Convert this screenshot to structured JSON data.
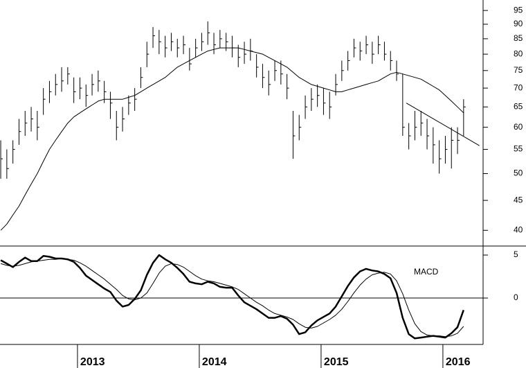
{
  "chart_data": [
    {
      "type": "ohlc",
      "x": [
        2012.37,
        2012.42,
        2012.47,
        2012.52,
        2012.57,
        2012.62,
        2012.67,
        2012.72,
        2012.77,
        2012.82,
        2012.87,
        2012.92,
        2012.97,
        2013.02,
        2013.07,
        2013.12,
        2013.17,
        2013.22,
        2013.27,
        2013.32,
        2013.37,
        2013.42,
        2013.47,
        2013.52,
        2013.57,
        2013.62,
        2013.67,
        2013.72,
        2013.77,
        2013.82,
        2013.87,
        2013.92,
        2013.97,
        2014.02,
        2014.07,
        2014.12,
        2014.17,
        2014.22,
        2014.27,
        2014.32,
        2014.37,
        2014.42,
        2014.47,
        2014.52,
        2014.57,
        2014.62,
        2014.67,
        2014.72,
        2014.77,
        2014.82,
        2014.87,
        2014.92,
        2014.97,
        2015.02,
        2015.07,
        2015.12,
        2015.17,
        2015.22,
        2015.27,
        2015.32,
        2015.37,
        2015.42,
        2015.47,
        2015.52,
        2015.57,
        2015.62,
        2015.67,
        2015.72,
        2015.77,
        2015.82,
        2015.87,
        2015.92,
        2015.97,
        2016.02,
        2016.07,
        2016.12,
        2016.17
      ],
      "high": [
        57,
        55,
        57,
        62,
        64,
        65,
        64,
        70,
        72,
        74,
        76,
        76,
        73,
        73,
        71,
        74,
        75,
        72,
        69,
        64,
        65,
        68,
        70,
        76,
        84,
        89,
        88,
        86,
        87,
        85,
        86,
        82,
        85,
        87,
        91,
        87,
        88,
        87,
        86,
        83,
        84,
        85,
        80,
        77,
        75,
        78,
        78,
        74,
        64,
        63,
        68,
        70,
        71,
        70,
        69,
        74,
        78,
        81,
        85,
        84,
        86,
        84,
        86,
        84,
        81,
        78,
        74,
        61,
        64,
        64,
        62,
        60,
        57,
        58,
        60,
        60,
        67
      ],
      "low": [
        49,
        49,
        52,
        56,
        58,
        59,
        57,
        63,
        66,
        68,
        69,
        71,
        66,
        67,
        65,
        68,
        69,
        66,
        62,
        57,
        59,
        63,
        64,
        70,
        76,
        82,
        80,
        79,
        81,
        79,
        80,
        75,
        79,
        81,
        83,
        80,
        82,
        81,
        79,
        76,
        77,
        78,
        73,
        70,
        68,
        72,
        71,
        67,
        53,
        57,
        62,
        64,
        65,
        63,
        62,
        68,
        72,
        75,
        79,
        78,
        80,
        77,
        80,
        78,
        75,
        72,
        58,
        55,
        57,
        58,
        55,
        52,
        50,
        52,
        51,
        54,
        58
      ],
      "close": [
        53,
        51,
        55,
        59,
        61,
        62,
        60,
        67,
        69,
        71,
        72,
        74,
        69,
        70,
        68,
        71,
        72,
        69,
        66,
        60,
        62,
        66,
        67,
        73,
        80,
        86,
        84,
        82,
        84,
        82,
        83,
        77,
        82,
        84,
        87,
        83,
        85,
        84,
        82,
        79,
        80,
        81,
        76,
        73,
        71,
        75,
        74,
        70,
        58,
        60,
        65,
        67,
        68,
        66,
        65,
        71,
        75,
        78,
        82,
        81,
        83,
        80,
        83,
        80,
        78,
        74,
        60,
        58,
        60,
        61,
        58,
        56,
        53,
        55,
        57,
        57,
        65
      ],
      "color": "#000000",
      "moving_average": {
        "color": "#000000",
        "values": [
          40,
          41,
          42.5,
          44,
          46,
          48,
          50,
          52.5,
          55,
          57,
          59,
          61,
          62.5,
          63.5,
          64.5,
          65.5,
          66.5,
          67,
          67,
          67,
          67,
          67.5,
          68,
          69,
          70,
          71,
          72,
          73,
          74.5,
          76,
          77,
          78,
          79,
          80,
          81,
          81.5,
          82,
          82,
          82,
          82,
          81.5,
          81,
          80.5,
          80,
          79,
          78,
          77,
          76,
          74.5,
          73,
          72,
          71,
          70.5,
          70,
          69.5,
          69,
          69,
          69.5,
          70,
          70.5,
          71,
          71.5,
          72,
          73,
          74,
          74.5,
          74,
          73.5,
          73,
          72.5,
          71.5,
          70.5,
          69.5,
          68,
          66.5,
          65,
          63.5
        ]
      },
      "trendline": {
        "color": "#000000",
        "x": [
          2015.7,
          2016.3
        ],
        "values": [
          66,
          55.8
        ]
      },
      "log_scale": true,
      "xlim": [
        2012.364,
        2016.33
      ],
      "ylim": [
        37.6,
        99
      ],
      "yticks": [
        40,
        45,
        50,
        55,
        60,
        65,
        70,
        75,
        80,
        85,
        90,
        95
      ]
    },
    {
      "type": "line",
      "annotation": "MACD",
      "x": [
        2012.37,
        2012.42,
        2012.47,
        2012.52,
        2012.57,
        2012.62,
        2012.67,
        2012.72,
        2012.77,
        2012.82,
        2012.87,
        2012.92,
        2012.97,
        2013.02,
        2013.07,
        2013.12,
        2013.17,
        2013.22,
        2013.27,
        2013.32,
        2013.37,
        2013.42,
        2013.47,
        2013.52,
        2013.57,
        2013.62,
        2013.67,
        2013.72,
        2013.77,
        2013.82,
        2013.87,
        2013.92,
        2013.97,
        2014.02,
        2014.07,
        2014.12,
        2014.17,
        2014.22,
        2014.27,
        2014.32,
        2014.37,
        2014.42,
        2014.47,
        2014.52,
        2014.57,
        2014.62,
        2014.67,
        2014.72,
        2014.77,
        2014.82,
        2014.87,
        2014.92,
        2014.97,
        2015.02,
        2015.07,
        2015.12,
        2015.17,
        2015.22,
        2015.27,
        2015.32,
        2015.37,
        2015.42,
        2015.47,
        2015.52,
        2015.57,
        2015.62,
        2015.67,
        2015.72,
        2015.77,
        2015.82,
        2015.87,
        2015.92,
        2015.97,
        2016.02,
        2016.07,
        2016.12,
        2016.17
      ],
      "series": [
        {
          "color": "#000000",
          "width": 2.5,
          "values": [
            4.4,
            4.0,
            3.6,
            4.2,
            4.7,
            4.3,
            4.3,
            4.9,
            4.8,
            4.6,
            4.6,
            4.5,
            4.2,
            3.5,
            2.6,
            2.1,
            1.6,
            1.1,
            0.7,
            -0.3,
            -1.0,
            -0.8,
            -0.1,
            0.9,
            2.7,
            4.1,
            5.0,
            4.5,
            4.1,
            3.5,
            2.8,
            1.9,
            1.7,
            1.6,
            1.9,
            1.7,
            1.3,
            1.2,
            1.2,
            0.3,
            -0.5,
            -0.9,
            -1.3,
            -1.8,
            -2.3,
            -2.3,
            -2.1,
            -2.4,
            -3.1,
            -4.2,
            -4.0,
            -3.2,
            -2.6,
            -2.2,
            -1.8,
            -1.0,
            0.2,
            1.4,
            2.4,
            3.1,
            3.4,
            3.2,
            3.1,
            2.8,
            2.3,
            0.6,
            -2.3,
            -4.2,
            -4.7,
            -4.6,
            -4.5,
            -4.4,
            -4.5,
            -4.6,
            -4.1,
            -3.4,
            -1.4
          ]
        },
        {
          "color": "#000000",
          "width": 1,
          "values": [
            4.0,
            3.8,
            3.7,
            3.8,
            4.0,
            4.2,
            4.3,
            4.4,
            4.5,
            4.5,
            4.6,
            4.5,
            4.4,
            4.1,
            3.7,
            3.2,
            2.7,
            2.2,
            1.6,
            1.0,
            0.3,
            -0.1,
            -0.2,
            0.0,
            0.6,
            1.7,
            2.9,
            3.7,
            4.0,
            3.9,
            3.6,
            3.1,
            2.6,
            2.2,
            2.0,
            1.9,
            1.7,
            1.5,
            1.3,
            1.0,
            0.5,
            0.0,
            -0.5,
            -0.9,
            -1.4,
            -1.8,
            -2.0,
            -2.2,
            -2.5,
            -3.0,
            -3.4,
            -3.5,
            -3.3,
            -2.9,
            -2.5,
            -2.0,
            -1.3,
            -0.4,
            0.6,
            1.5,
            2.2,
            2.7,
            2.9,
            3.0,
            2.8,
            2.0,
            0.5,
            -1.4,
            -3.0,
            -3.9,
            -4.3,
            -4.4,
            -4.4,
            -4.5,
            -4.4,
            -4.1,
            -3.3
          ]
        }
      ],
      "xlim": [
        2012.364,
        2016.33
      ],
      "xticks": [
        2013,
        2014,
        2015,
        2016
      ],
      "ylim": [
        -5.4,
        6.05
      ],
      "yticks": [
        0,
        5
      ]
    }
  ]
}
